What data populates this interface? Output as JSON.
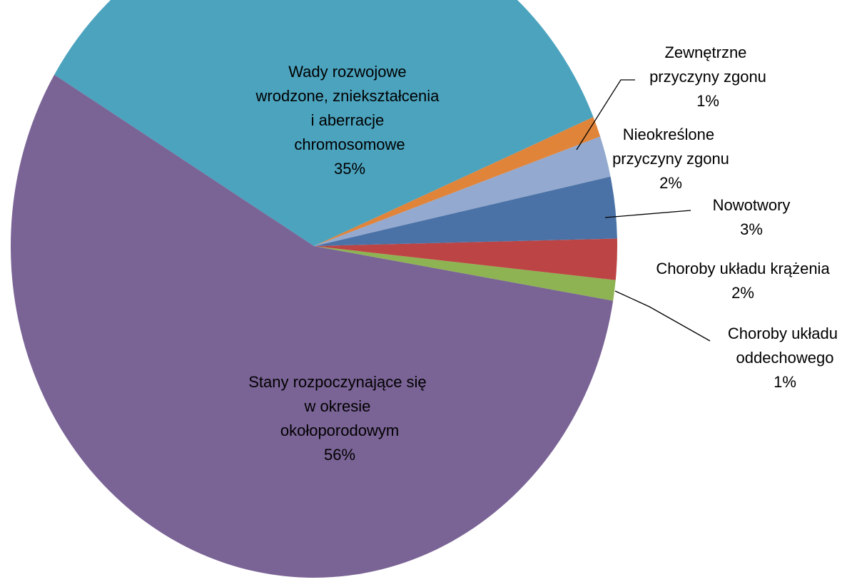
{
  "chart_data": {
    "type": "pie",
    "categories": [
      "Choroby układu oddechowego",
      "Choroby układu krążenia",
      "Nowotwory",
      "Nieokreślone przyczyny zgonu",
      "Zewnętrzne przyczyny zgonu",
      "Wady rozwojowe wrodzone, zniekształcenia i aberracje chromosomowe",
      "Stany rozpoczynające się w okresie okołoporodowym"
    ],
    "values": [
      1,
      2,
      3,
      2,
      1,
      35,
      56
    ],
    "value_labels": [
      "1%",
      "2%",
      "3%",
      "2%",
      "1%",
      "35%",
      "56%"
    ],
    "colors": [
      "#8db353",
      "#bd4444",
      "#4b72a6",
      "#93a9cf",
      "#e0843a",
      "#4ba3be",
      "#7a6395"
    ]
  }
}
